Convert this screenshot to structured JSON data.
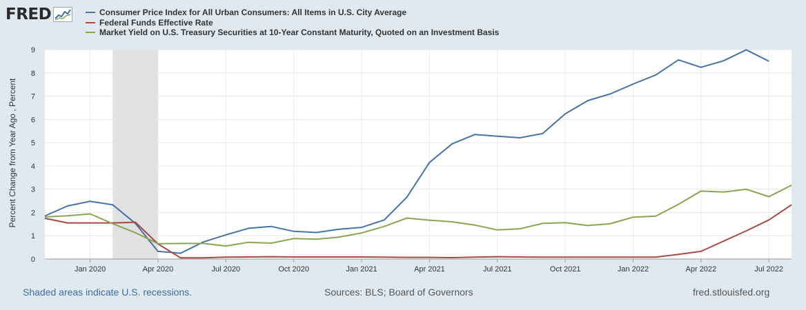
{
  "header": {
    "logo_text": "FRED"
  },
  "footer": {
    "notes": "Shaded areas indicate U.S. recessions.",
    "sources": "Sources: BLS; Board of Governors",
    "site": "fred.stlouisfed.org"
  },
  "colors": {
    "cpi": "#4572a7",
    "ffr": "#aa4643",
    "tsy": "#89a54e",
    "recession": "#e1e1e1",
    "background": "#e1e9f0"
  },
  "chart_data": {
    "type": "line",
    "title": "",
    "xlabel": "",
    "ylabel": "Percent Change from Year Ago , Percent",
    "ylim": [
      0,
      9
    ],
    "yticks": [
      0,
      1,
      2,
      3,
      4,
      5,
      6,
      7,
      8,
      9
    ],
    "xlim": [
      "2019-11",
      "2022-08"
    ],
    "x_tick_labels": [
      {
        "date": "2020-01",
        "label": "Jan 2020"
      },
      {
        "date": "2020-04",
        "label": "Apr 2020"
      },
      {
        "date": "2020-07",
        "label": "Jul 2020"
      },
      {
        "date": "2020-10",
        "label": "Oct 2020"
      },
      {
        "date": "2021-01",
        "label": "Jan 2021"
      },
      {
        "date": "2021-04",
        "label": "Apr 2021"
      },
      {
        "date": "2021-07",
        "label": "Jul 2021"
      },
      {
        "date": "2021-10",
        "label": "Oct 2021"
      },
      {
        "date": "2022-01",
        "label": "Jan 2022"
      },
      {
        "date": "2022-04",
        "label": "Apr 2022"
      },
      {
        "date": "2022-07",
        "label": "Jul 2022"
      }
    ],
    "recessions": [
      {
        "start": "2020-02",
        "end": "2020-04"
      }
    ],
    "legend_position": "top",
    "grid": true,
    "series": [
      {
        "name": "Consumer Price Index for All Urban Consumers: All Items in U.S. City Average",
        "key": "cpi",
        "points": [
          [
            "2019-11",
            1.85
          ],
          [
            "2019-12",
            2.28
          ],
          [
            "2020-01",
            2.48
          ],
          [
            "2020-02",
            2.33
          ],
          [
            "2020-03",
            1.53
          ],
          [
            "2020-04",
            0.33
          ],
          [
            "2020-05",
            0.25
          ],
          [
            "2020-06",
            0.73
          ],
          [
            "2020-07",
            1.04
          ],
          [
            "2020-08",
            1.32
          ],
          [
            "2020-09",
            1.4
          ],
          [
            "2020-10",
            1.19
          ],
          [
            "2020-11",
            1.14
          ],
          [
            "2020-12",
            1.28
          ],
          [
            "2021-01",
            1.36
          ],
          [
            "2021-02",
            1.68
          ],
          [
            "2021-03",
            2.66
          ],
          [
            "2021-04",
            4.15
          ],
          [
            "2021-05",
            4.95
          ],
          [
            "2021-06",
            5.35
          ],
          [
            "2021-07",
            5.28
          ],
          [
            "2021-08",
            5.21
          ],
          [
            "2021-09",
            5.39
          ],
          [
            "2021-10",
            6.24
          ],
          [
            "2021-11",
            6.81
          ],
          [
            "2021-12",
            7.1
          ],
          [
            "2022-01",
            7.52
          ],
          [
            "2022-02",
            7.91
          ],
          [
            "2022-03",
            8.56
          ],
          [
            "2022-04",
            8.24
          ],
          [
            "2022-05",
            8.52
          ],
          [
            "2022-06",
            8.99
          ],
          [
            "2022-07",
            8.5
          ]
        ]
      },
      {
        "name": "Federal Funds Effective Rate",
        "key": "ffr",
        "points": [
          [
            "2019-11",
            1.75
          ],
          [
            "2019-12",
            1.55
          ],
          [
            "2020-01",
            1.55
          ],
          [
            "2020-02",
            1.55
          ],
          [
            "2020-03",
            1.58
          ],
          [
            "2020-04",
            0.65
          ],
          [
            "2020-05",
            0.05
          ],
          [
            "2020-06",
            0.05
          ],
          [
            "2020-07",
            0.08
          ],
          [
            "2020-08",
            0.09
          ],
          [
            "2020-09",
            0.1
          ],
          [
            "2020-10",
            0.09
          ],
          [
            "2020-11",
            0.09
          ],
          [
            "2020-12",
            0.09
          ],
          [
            "2021-01",
            0.09
          ],
          [
            "2021-02",
            0.08
          ],
          [
            "2021-03",
            0.07
          ],
          [
            "2021-04",
            0.07
          ],
          [
            "2021-05",
            0.06
          ],
          [
            "2021-06",
            0.08
          ],
          [
            "2021-07",
            0.1
          ],
          [
            "2021-08",
            0.09
          ],
          [
            "2021-09",
            0.08
          ],
          [
            "2021-10",
            0.08
          ],
          [
            "2021-11",
            0.08
          ],
          [
            "2021-12",
            0.08
          ],
          [
            "2022-01",
            0.08
          ],
          [
            "2022-02",
            0.08
          ],
          [
            "2022-03",
            0.2
          ],
          [
            "2022-04",
            0.33
          ],
          [
            "2022-05",
            0.77
          ],
          [
            "2022-06",
            1.21
          ],
          [
            "2022-07",
            1.68
          ],
          [
            "2022-08",
            2.33
          ]
        ]
      },
      {
        "name": "Market Yield on U.S. Treasury Securities at 10-Year Constant Maturity, Quoted on an Investment Basis",
        "key": "tsy",
        "points": [
          [
            "2019-11",
            1.81
          ],
          [
            "2019-12",
            1.86
          ],
          [
            "2020-01",
            1.94
          ],
          [
            "2020-02",
            1.52
          ],
          [
            "2020-03",
            1.13
          ],
          [
            "2020-04",
            0.66
          ],
          [
            "2020-05",
            0.67
          ],
          [
            "2020-06",
            0.67
          ],
          [
            "2020-07",
            0.56
          ],
          [
            "2020-08",
            0.72
          ],
          [
            "2020-09",
            0.68
          ],
          [
            "2020-10",
            0.88
          ],
          [
            "2020-11",
            0.85
          ],
          [
            "2020-12",
            0.94
          ],
          [
            "2021-01",
            1.12
          ],
          [
            "2021-02",
            1.4
          ],
          [
            "2021-03",
            1.76
          ],
          [
            "2021-04",
            1.67
          ],
          [
            "2021-05",
            1.6
          ],
          [
            "2021-06",
            1.46
          ],
          [
            "2021-07",
            1.25
          ],
          [
            "2021-08",
            1.3
          ],
          [
            "2021-09",
            1.53
          ],
          [
            "2021-10",
            1.56
          ],
          [
            "2021-11",
            1.44
          ],
          [
            "2021-12",
            1.52
          ],
          [
            "2022-01",
            1.8
          ],
          [
            "2022-02",
            1.84
          ],
          [
            "2022-03",
            2.35
          ],
          [
            "2022-04",
            2.92
          ],
          [
            "2022-05",
            2.88
          ],
          [
            "2022-06",
            3.0
          ],
          [
            "2022-07",
            2.68
          ],
          [
            "2022-08",
            3.17
          ]
        ]
      }
    ]
  }
}
